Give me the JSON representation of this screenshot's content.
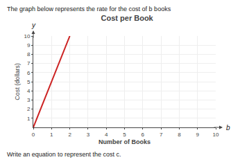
{
  "chart_data": {
    "type": "line",
    "title": "Cost per Book",
    "subtitle": "The graph below represents the rate for the cost of b books",
    "xlabel": "Number of Books",
    "ylabel": "Cost (dollars)",
    "annotations": [
      "Write an equation to represent the cost c.",
      "b",
      "y"
    ],
    "x": [
      0,
      2
    ],
    "values": [
      0,
      10
    ],
    "color": "#cc2222",
    "xlim": [
      0,
      10
    ],
    "ylim": [
      0,
      10
    ],
    "xticks": [
      0,
      1,
      2,
      3,
      4,
      5,
      6,
      7,
      8,
      9,
      10
    ],
    "yticks": [
      1,
      2,
      3,
      4,
      5,
      6,
      7,
      8,
      9,
      10
    ],
    "grid": true
  }
}
